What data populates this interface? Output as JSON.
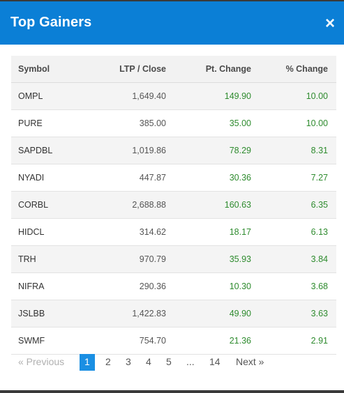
{
  "modal": {
    "title": "Top Gainers",
    "close_glyph": "×"
  },
  "table": {
    "headers": {
      "symbol": "Symbol",
      "ltp": "LTP / Close",
      "pt_change": "Pt. Change",
      "pct_change": "% Change"
    },
    "rows": [
      {
        "symbol": "OMPL",
        "ltp": "1,649.40",
        "pt": "149.90",
        "pct": "10.00"
      },
      {
        "symbol": "PURE",
        "ltp": "385.00",
        "pt": "35.00",
        "pct": "10.00"
      },
      {
        "symbol": "SAPDBL",
        "ltp": "1,019.86",
        "pt": "78.29",
        "pct": "8.31"
      },
      {
        "symbol": "NYADI",
        "ltp": "447.87",
        "pt": "30.36",
        "pct": "7.27"
      },
      {
        "symbol": "CORBL",
        "ltp": "2,688.88",
        "pt": "160.63",
        "pct": "6.35"
      },
      {
        "symbol": "HIDCL",
        "ltp": "314.62",
        "pt": "18.17",
        "pct": "6.13"
      },
      {
        "symbol": "TRH",
        "ltp": "970.79",
        "pt": "35.93",
        "pct": "3.84"
      },
      {
        "symbol": "NIFRA",
        "ltp": "290.36",
        "pt": "10.30",
        "pct": "3.68"
      },
      {
        "symbol": "JSLBB",
        "ltp": "1,422.83",
        "pt": "49.90",
        "pct": "3.63"
      },
      {
        "symbol": "SWMF",
        "ltp": "754.70",
        "pt": "21.36",
        "pct": "2.91"
      }
    ]
  },
  "pagination": {
    "prev_label": "« Previous",
    "pages": [
      "1",
      "2",
      "3",
      "4",
      "5"
    ],
    "ellipsis": "...",
    "last_page": "14",
    "next_label": "Next »",
    "current": "1"
  },
  "colors": {
    "header_bg": "#0b7fd6",
    "positive": "#2e8b2e",
    "active_page": "#1a8fe3"
  }
}
